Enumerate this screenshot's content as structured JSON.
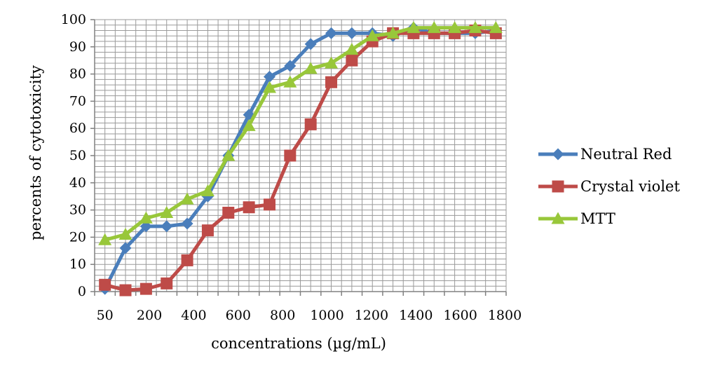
{
  "chart_data": {
    "type": "line",
    "title": "",
    "xlabel": "concentrations (µg/mL)",
    "ylabel": "percents of cytotoxicity",
    "x_tick_labels": [
      "50",
      "200",
      "400",
      "600",
      "800",
      "1000",
      "1200",
      "1400",
      "1600",
      "1800"
    ],
    "y_tick_labels": [
      "0",
      "10",
      "20",
      "30",
      "40",
      "50",
      "60",
      "70",
      "80",
      "90",
      "100"
    ],
    "ylim": [
      0,
      100
    ],
    "grid": true,
    "legend_position": "right",
    "series": [
      {
        "name": "Neutral Red",
        "color": "#4A7EBB",
        "marker": "diamond",
        "values": [
          1,
          16,
          24,
          24,
          25,
          35,
          50,
          65,
          79,
          83,
          91,
          95,
          95,
          95,
          94,
          97,
          95,
          95,
          95,
          96
        ]
      },
      {
        "name": "Crystal violet",
        "color": "#BE4B48",
        "marker": "square",
        "values": [
          2.5,
          0.5,
          1,
          3,
          11.5,
          22.5,
          29,
          31,
          32,
          50,
          61.5,
          77,
          85,
          92,
          95,
          95,
          95,
          95,
          96,
          95
        ]
      },
      {
        "name": "MTT",
        "color": "#98C73A",
        "marker": "triangle",
        "values": [
          19,
          21,
          27,
          29,
          34,
          37,
          50,
          61,
          75,
          77,
          82,
          84,
          89,
          94,
          95,
          97,
          97,
          97,
          97,
          97
        ]
      }
    ]
  }
}
